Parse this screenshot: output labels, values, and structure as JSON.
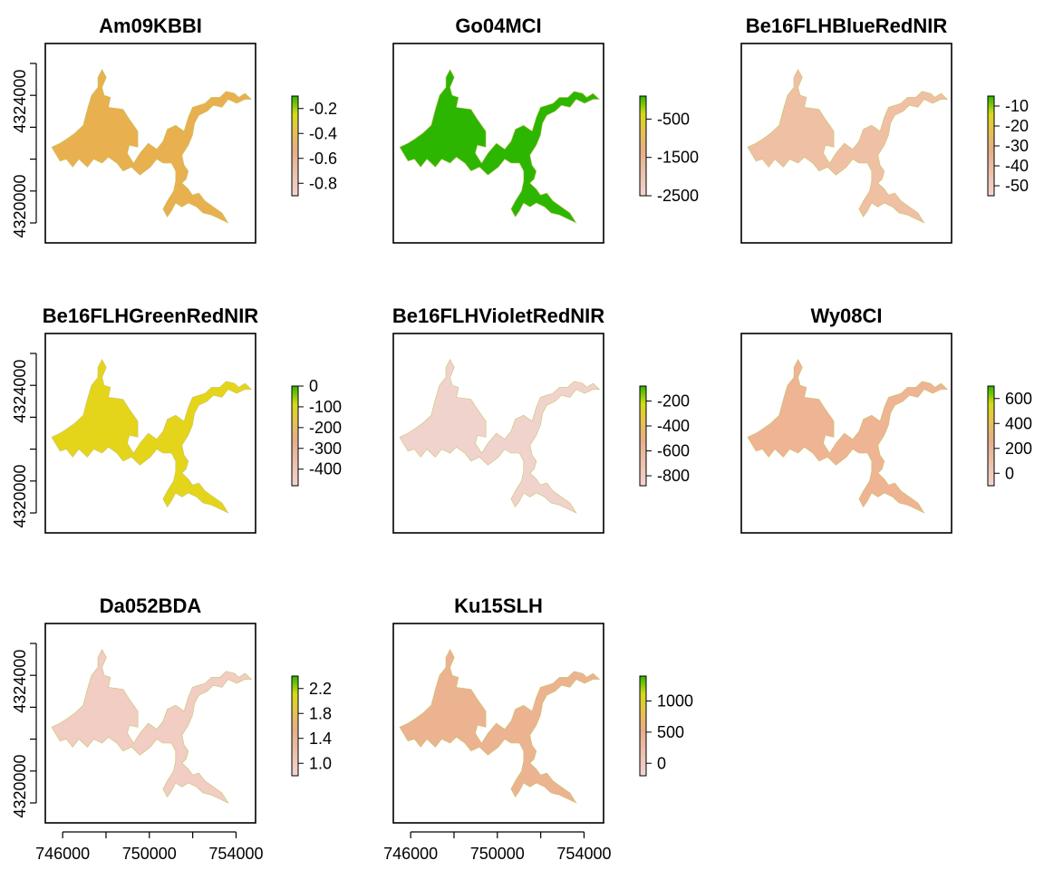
{
  "chart_data": {
    "type": "heatmap",
    "description_kind": "small-multiple raster maps",
    "palette": {
      "low": "#f2d5cf",
      "mid_low": "#e8b190",
      "mid": "#e6c250",
      "mid_high": "#d4db18",
      "high": "#2db400"
    },
    "x_axis": {
      "ticks": [
        746000,
        750000,
        754000
      ],
      "tick_labels": [
        "746000",
        "750000",
        "754000"
      ],
      "range": [
        745200,
        754900
      ]
    },
    "y_axis": {
      "ticks": [
        4320000,
        4324000
      ],
      "tick_labels": [
        "4320000",
        "4324000"
      ],
      "range": [
        4318600,
        4326200
      ]
    },
    "panels": [
      {
        "title": "Am09KBBI",
        "fill": "#e8b04e",
        "legend": {
          "ticks": [
            -0.2,
            -0.4,
            -0.6,
            -0.8
          ],
          "labels": [
            "-0.2",
            "-0.4",
            "-0.6",
            "-0.8"
          ],
          "range": [
            -0.9,
            -0.1
          ]
        },
        "show_y_axis": true,
        "show_x_axis": false
      },
      {
        "title": "Go04MCI",
        "fill": "#2db600",
        "legend": {
          "ticks": [
            -500,
            -1500,
            -2500
          ],
          "labels": [
            "-500",
            "-1500",
            "-2500"
          ],
          "range": [
            -2500,
            100
          ]
        },
        "show_y_axis": false,
        "show_x_axis": false
      },
      {
        "title": "Be16FLHBlueRedNIR",
        "fill": "#efc0a4",
        "legend": {
          "ticks": [
            -10,
            -20,
            -30,
            -40,
            -50
          ],
          "labels": [
            "-10",
            "-20",
            "-30",
            "-40",
            "-50"
          ],
          "range": [
            -55,
            -5
          ]
        },
        "show_y_axis": false,
        "show_x_axis": false
      },
      {
        "title": "Be16FLHGreenRedNIR",
        "fill": "#e4d51a",
        "legend": {
          "ticks": [
            0,
            -100,
            -200,
            -300,
            -400
          ],
          "labels": [
            "0",
            "-100",
            "-200",
            "-300",
            "-400"
          ],
          "range": [
            -480,
            0
          ]
        },
        "show_y_axis": true,
        "show_x_axis": false
      },
      {
        "title": "Be16FLHVioletRedNIR",
        "fill": "#f1d3cd",
        "legend": {
          "ticks": [
            -200,
            -400,
            -600,
            -800
          ],
          "labels": [
            "-200",
            "-400",
            "-600",
            "-800"
          ],
          "range": [
            -880,
            -80
          ]
        },
        "show_y_axis": false,
        "show_x_axis": false
      },
      {
        "title": "Wy08CI",
        "fill": "#eeb493",
        "legend": {
          "ticks": [
            600,
            400,
            200,
            0
          ],
          "labels": [
            "600",
            "400",
            "200",
            "0"
          ],
          "range": [
            -100,
            700
          ]
        },
        "show_y_axis": false,
        "show_x_axis": false
      },
      {
        "title": "Da052BDA",
        "fill": "#f1cdc4",
        "legend": {
          "ticks": [
            2.2,
            1.8,
            1.4,
            1.0
          ],
          "labels": [
            "2.2",
            "1.8",
            "1.4",
            "1.0"
          ],
          "range": [
            0.8,
            2.4
          ]
        },
        "show_y_axis": true,
        "show_x_axis": true
      },
      {
        "title": "Ku15SLH",
        "fill": "#ecb390",
        "legend": {
          "ticks": [
            1000,
            500,
            0
          ],
          "labels": [
            "1000",
            "500",
            "0"
          ],
          "range": [
            -200,
            1400
          ]
        },
        "show_y_axis": false,
        "show_x_axis": true
      }
    ]
  }
}
